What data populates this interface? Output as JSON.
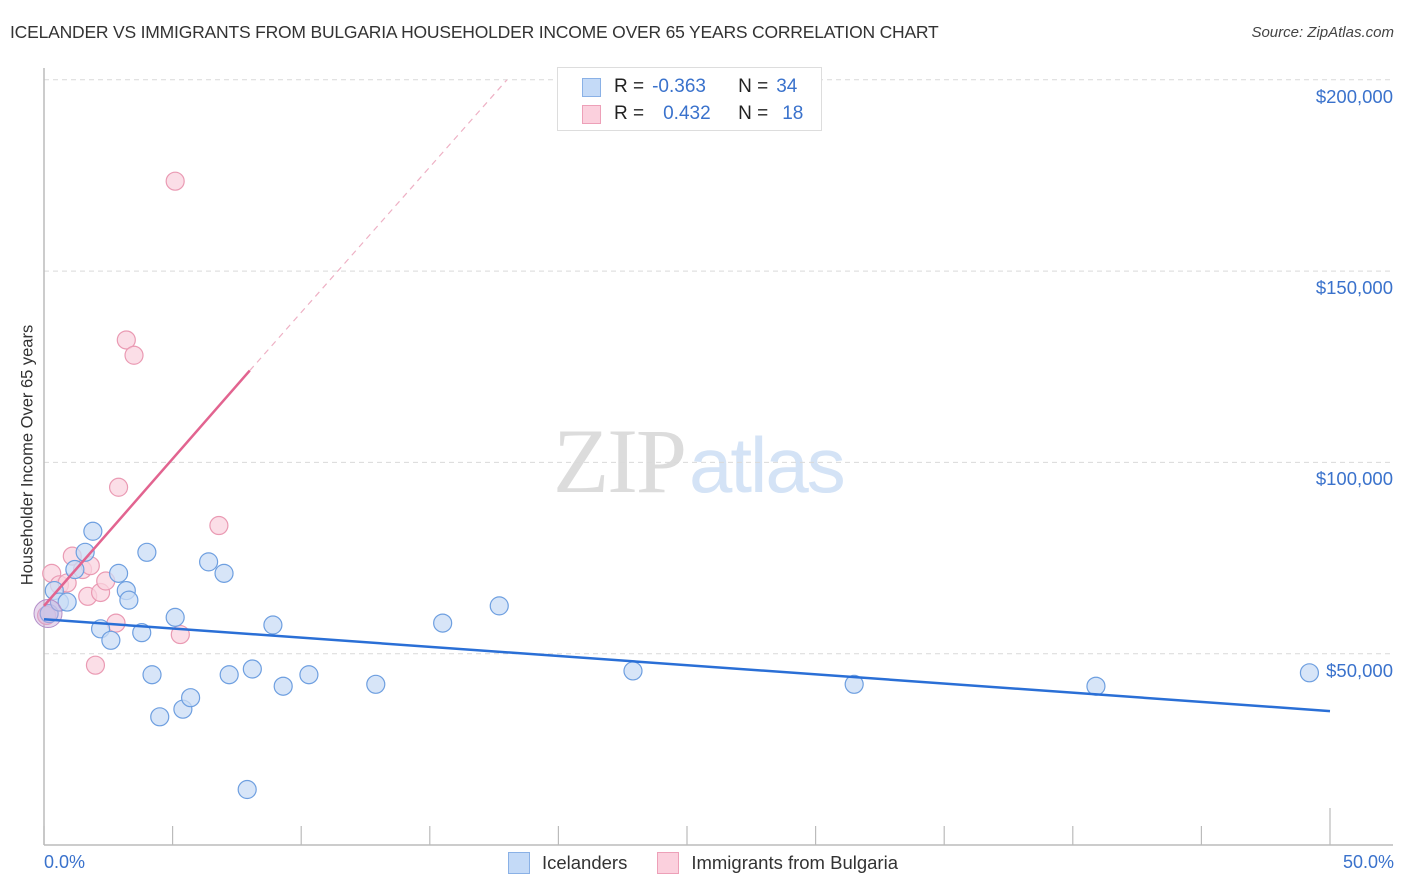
{
  "header": {
    "title": "ICELANDER VS IMMIGRANTS FROM BULGARIA HOUSEHOLDER INCOME OVER 65 YEARS CORRELATION CHART",
    "source": "Source: ZipAtlas.com"
  },
  "watermark": {
    "zip": "ZIP",
    "atlas": "atlas"
  },
  "stats_box": {
    "rows": [
      {
        "r_label": "R =",
        "r_value": "-0.363",
        "n_label": "N =",
        "n_value": "34",
        "color": "#aecbf2"
      },
      {
        "r_label": "R =",
        "r_value": "0.432",
        "n_label": "N =",
        "n_value": "18",
        "color": "#f7bfd0"
      }
    ]
  },
  "legend": {
    "items": [
      {
        "label": "Icelanders",
        "color": "#aecbf2"
      },
      {
        "label": "Immigrants from Bulgaria",
        "color": "#f7bfd0"
      }
    ]
  },
  "colors": {
    "blue_point_fill": "#c9dcf5",
    "blue_point_stroke": "#6e9fe0",
    "blue_line": "#2a6fd6",
    "pink_point_fill": "#fad3df",
    "pink_point_stroke": "#ea9ab3",
    "pink_line": "#e26490",
    "axis_label": "#3a72cc",
    "grid": "#d9d9d9"
  },
  "chart_data": {
    "type": "scatter",
    "title": "ICELANDER VS IMMIGRANTS FROM BULGARIA HOUSEHOLDER INCOME OVER 65 YEARS CORRELATION CHART",
    "xlabel": "",
    "ylabel": "Householder Income Over 65 years",
    "xlim": [
      0,
      50
    ],
    "ylim": [
      0,
      200000
    ],
    "x_tick_labels": [
      "0.0%",
      "50.0%"
    ],
    "y_tick_labels": [
      "$50,000",
      "$100,000",
      "$150,000",
      "$200,000"
    ],
    "y_ticks": [
      50000,
      100000,
      150000,
      200000
    ],
    "grid": true,
    "legend_position": "bottom",
    "series": [
      {
        "name": "Icelanders",
        "R": -0.363,
        "N": 34,
        "points": [
          {
            "x": 0.2,
            "y": 60500
          },
          {
            "x": 0.4,
            "y": 66500
          },
          {
            "x": 0.6,
            "y": 63500
          },
          {
            "x": 0.9,
            "y": 63500
          },
          {
            "x": 1.2,
            "y": 72000
          },
          {
            "x": 1.6,
            "y": 76500
          },
          {
            "x": 1.9,
            "y": 82000
          },
          {
            "x": 2.2,
            "y": 56500
          },
          {
            "x": 2.6,
            "y": 53500
          },
          {
            "x": 2.9,
            "y": 71000
          },
          {
            "x": 3.2,
            "y": 66500
          },
          {
            "x": 3.3,
            "y": 64000
          },
          {
            "x": 3.8,
            "y": 55500
          },
          {
            "x": 4.0,
            "y": 76500
          },
          {
            "x": 4.2,
            "y": 44500
          },
          {
            "x": 4.5,
            "y": 33500
          },
          {
            "x": 5.1,
            "y": 59500
          },
          {
            "x": 5.4,
            "y": 35500
          },
          {
            "x": 5.7,
            "y": 38500
          },
          {
            "x": 6.4,
            "y": 74000
          },
          {
            "x": 7.0,
            "y": 71000
          },
          {
            "x": 7.2,
            "y": 44500
          },
          {
            "x": 7.9,
            "y": 14500
          },
          {
            "x": 8.1,
            "y": 46000
          },
          {
            "x": 8.9,
            "y": 57500
          },
          {
            "x": 9.3,
            "y": 41500
          },
          {
            "x": 10.3,
            "y": 44500
          },
          {
            "x": 12.9,
            "y": 42000
          },
          {
            "x": 15.5,
            "y": 58000
          },
          {
            "x": 17.7,
            "y": 62500
          },
          {
            "x": 22.9,
            "y": 45500
          },
          {
            "x": 31.5,
            "y": 42000
          },
          {
            "x": 40.9,
            "y": 41500
          },
          {
            "x": 49.2,
            "y": 45000
          }
        ],
        "trend": {
          "x0": 0,
          "y0": 59000,
          "x1": 50,
          "y1": 35000
        }
      },
      {
        "name": "Immigrants from Bulgaria",
        "R": 0.432,
        "N": 18,
        "points": [
          {
            "x": 0.1,
            "y": 60000
          },
          {
            "x": 0.3,
            "y": 71000
          },
          {
            "x": 0.6,
            "y": 68000
          },
          {
            "x": 0.9,
            "y": 68500
          },
          {
            "x": 1.1,
            "y": 75500
          },
          {
            "x": 1.5,
            "y": 72000
          },
          {
            "x": 1.8,
            "y": 73000
          },
          {
            "x": 1.7,
            "y": 65000
          },
          {
            "x": 2.0,
            "y": 47000
          },
          {
            "x": 2.2,
            "y": 66000
          },
          {
            "x": 2.4,
            "y": 69000
          },
          {
            "x": 2.8,
            "y": 58000
          },
          {
            "x": 2.9,
            "y": 93500
          },
          {
            "x": 3.2,
            "y": 132000
          },
          {
            "x": 3.5,
            "y": 128000
          },
          {
            "x": 5.1,
            "y": 173500
          },
          {
            "x": 5.3,
            "y": 55000
          },
          {
            "x": 6.8,
            "y": 83500
          }
        ],
        "trend": {
          "x0": 0,
          "y0": 62500,
          "x1": 8.0,
          "y1": 124000,
          "dashed_to_x": 18.0,
          "dashed_to_y": 200000
        }
      }
    ]
  }
}
